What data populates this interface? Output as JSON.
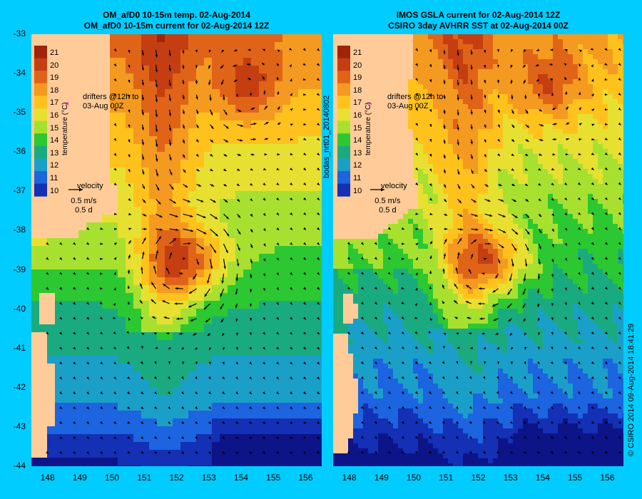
{
  "panels": [
    {
      "title_line1": "OM_afD0 10-15m temp. 02-Aug-2014",
      "title_line2": "OM_afD0 10-15m current for 02-Aug-2014 12Z"
    },
    {
      "title_line1": "IMOS GSLA current for 02-Aug-2014 12Z",
      "title_line2": "CSIRO 3day AVHRR SST at 02-Aug-2014 00Z"
    }
  ],
  "y_ticks": [
    "-33",
    "-34",
    "-35",
    "-36",
    "-37",
    "-38",
    "-39",
    "-40",
    "-41",
    "-42",
    "-43",
    "-44"
  ],
  "x_ticks": [
    "148",
    "149",
    "150",
    "151",
    "152",
    "153",
    "154",
    "155",
    "156"
  ],
  "colorbar": {
    "labels": [
      "21",
      "20",
      "19",
      "18",
      "17",
      "16",
      "15",
      "14",
      "13",
      "12",
      "11",
      "10"
    ],
    "title": "temperature (°C)",
    "colors": [
      "#a0240a",
      "#c43e12",
      "#e06418",
      "#f49a20",
      "#ffc21c",
      "#e8e030",
      "#a8e030",
      "#2cc832",
      "#1aaa80",
      "#1aa0c8",
      "#1c64e0",
      "#1430b4",
      "#0c1488"
    ]
  },
  "legend": {
    "drifters_line1": "drifters @12h to",
    "drifters_line2": "03-Aug 00Z",
    "velocity_label": "velocity",
    "speed": "0.5 m/s",
    "duration": "0.5 d"
  },
  "side_text_left": "bodas_nrt01_20140802",
  "side_text_right": "© CSIRO 2014   09-Aug-2014 18:41:29",
  "map_data": {
    "lon_range": [
      147.5,
      156.5
    ],
    "lat_range": [
      -44,
      -33
    ],
    "warm_eddy_center": [
      152.3,
      -38.8
    ],
    "colors": {
      "land": "#ffcc99",
      "background": "#00ccff",
      "drifter_marker": "#ff00ff"
    }
  }
}
